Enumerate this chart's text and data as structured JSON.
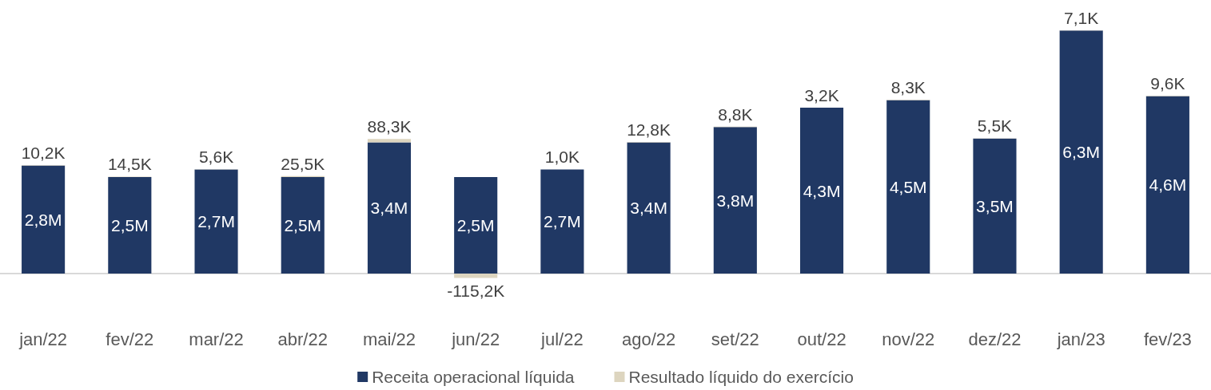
{
  "chart_data": {
    "type": "bar",
    "stacked": true,
    "legend": "bottom",
    "categories": [
      "jan/22",
      "fev/22",
      "mar/22",
      "abr/22",
      "mai/22",
      "jun/22",
      "jul/22",
      "ago/22",
      "set/22",
      "out/22",
      "nov/22",
      "dez/22",
      "jan/23",
      "fev/23"
    ],
    "series": [
      {
        "name": "Receita operacional líquida",
        "color": "#203864",
        "values": [
          2800000,
          2500000,
          2700000,
          2500000,
          3400000,
          2500000,
          2700000,
          3400000,
          3800000,
          4300000,
          4500000,
          3500000,
          6300000,
          4600000
        ],
        "value_labels": [
          "2,8M",
          "2,5M",
          "2,7M",
          "2,5M",
          "3,4M",
          "2,5M",
          "2,7M",
          "3,4M",
          "3,8M",
          "4,3M",
          "4,5M",
          "3,5M",
          "6,3M",
          "4,6M"
        ]
      },
      {
        "name": "Resultado líquido do exercício",
        "color": "#ddd5bf",
        "values": [
          10200,
          14500,
          5600,
          25500,
          88300,
          -115200,
          1000,
          12800,
          8800,
          3200,
          8300,
          5500,
          7100,
          9600
        ],
        "value_labels": [
          "10,2K",
          "14,5K",
          "5,6K",
          "25,5K",
          "88,3K",
          "-115,2K",
          "1,0K",
          "12,8K",
          "8,8K",
          "3,2K",
          "8,3K",
          "5,5K",
          "7,1K",
          "9,6K"
        ]
      }
    ]
  }
}
